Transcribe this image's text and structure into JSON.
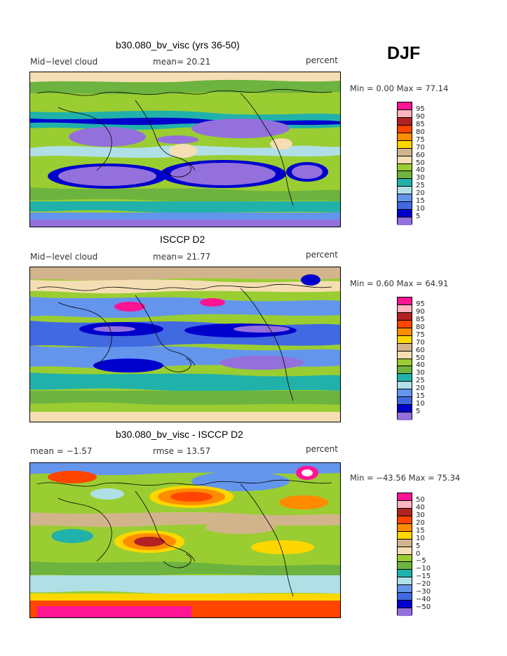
{
  "season": "DJF",
  "panels": [
    {
      "title": "b30.080_bv_visc (yrs 36-50)",
      "left_label": "Mid−level cloud",
      "center_label": "mean=  20.21",
      "units": "percent",
      "minmax": "Min =   0.00 Max =  77.14",
      "legend_labels": [
        "95",
        "90",
        "85",
        "80",
        "75",
        "70",
        "60",
        "50",
        "40",
        "30",
        "25",
        "20",
        "15",
        "10",
        "5"
      ],
      "legend_colors": [
        "#ff1493",
        "#ffb6c1",
        "#b22222",
        "#ff4500",
        "#ff8c00",
        "#ffd700",
        "#d2b48c",
        "#f5deb3",
        "#9acd32",
        "#6db33f",
        "#20b2aa",
        "#b0e0e6",
        "#6495ed",
        "#4169e1",
        "#0000cd",
        "#9370db"
      ]
    },
    {
      "title": "ISCCP D2",
      "left_label": "Mid−level cloud",
      "center_label": "mean=  21.77",
      "units": "percent",
      "minmax": "Min =   0.60 Max =  64.91",
      "legend_labels": [
        "95",
        "90",
        "85",
        "80",
        "75",
        "70",
        "60",
        "50",
        "40",
        "30",
        "25",
        "20",
        "15",
        "10",
        "5"
      ],
      "legend_colors": [
        "#ff1493",
        "#ffb6c1",
        "#b22222",
        "#ff4500",
        "#ff8c00",
        "#ffd700",
        "#d2b48c",
        "#f5deb3",
        "#9acd32",
        "#6db33f",
        "#20b2aa",
        "#b0e0e6",
        "#6495ed",
        "#4169e1",
        "#0000cd",
        "#9370db"
      ]
    },
    {
      "title": "b30.080_bv_visc - ISCCP D2",
      "left_label": "mean =   −1.57",
      "center_label": "rmse =  13.57",
      "units": "percent",
      "minmax": "Min = −43.56 Max =  75.34",
      "legend_labels": [
        "50",
        "40",
        "30",
        "20",
        "15",
        "10",
        "5",
        "0",
        "−5",
        "−10",
        "−15",
        "−20",
        "−30",
        "−40",
        "−50"
      ],
      "legend_colors": [
        "#ff1493",
        "#ffb6c1",
        "#b22222",
        "#ff4500",
        "#ff8c00",
        "#ffd700",
        "#d2b48c",
        "#f5deb3",
        "#9acd32",
        "#6db33f",
        "#20b2aa",
        "#b0e0e6",
        "#6495ed",
        "#4169e1",
        "#0000cd",
        "#9370db"
      ]
    }
  ],
  "chart_data": [
    {
      "type": "heatmap",
      "title": "b30.080_bv_visc (yrs 36-50)",
      "variable": "Mid-level cloud",
      "units": "percent",
      "mean": 20.21,
      "min": 0.0,
      "max": 77.14,
      "levels": [
        5,
        10,
        15,
        20,
        25,
        30,
        40,
        50,
        60,
        70,
        75,
        80,
        85,
        90,
        95
      ]
    },
    {
      "type": "heatmap",
      "title": "ISCCP D2",
      "variable": "Mid-level cloud",
      "units": "percent",
      "mean": 21.77,
      "min": 0.6,
      "max": 64.91,
      "levels": [
        5,
        10,
        15,
        20,
        25,
        30,
        40,
        50,
        60,
        70,
        75,
        80,
        85,
        90,
        95
      ]
    },
    {
      "type": "heatmap",
      "title": "b30.080_bv_visc - ISCCP D2",
      "units": "percent",
      "mean": -1.57,
      "rmse": 13.57,
      "min": -43.56,
      "max": 75.34,
      "levels": [
        -50,
        -40,
        -30,
        -20,
        -15,
        -10,
        -5,
        0,
        5,
        10,
        15,
        20,
        30,
        40,
        50
      ]
    }
  ]
}
